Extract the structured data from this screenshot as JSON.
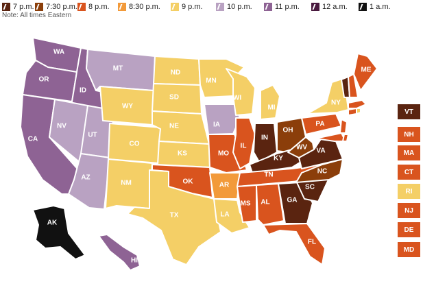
{
  "legend": [
    {
      "label": "7 p.m.",
      "color": "#5a2410"
    },
    {
      "label": "7:30 p.m.",
      "color": "#8b3e0a"
    },
    {
      "label": "8 p.m.",
      "color": "#d9541e"
    },
    {
      "label": "8:30 p.m.",
      "color": "#f29a3a"
    },
    {
      "label": "9 p.m.",
      "color": "#f4cf66"
    },
    {
      "label": "10 p.m.",
      "color": "#b9a2c2"
    },
    {
      "label": "11 p.m.",
      "color": "#8e6394"
    },
    {
      "label": "12 a.m.",
      "color": "#4a1a3f"
    },
    {
      "label": "1 a.m.",
      "color": "#111111"
    }
  ],
  "note": "Note: All times Eastern",
  "states": {
    "WA": "11 p.m.",
    "OR": "11 p.m.",
    "ID": "11 p.m.",
    "CA": "11 p.m.",
    "HI": "11 p.m.",
    "NV": "10 p.m.",
    "UT": "10 p.m.",
    "AZ": "10 p.m.",
    "MT": "10 p.m.",
    "IA": "10 p.m.",
    "AK": "1 a.m.",
    "WY": "9 p.m.",
    "CO": "9 p.m.",
    "NM": "9 p.m.",
    "ND": "9 p.m.",
    "SD": "9 p.m.",
    "NE": "9 p.m.",
    "KS": "9 p.m.",
    "TX": "9 p.m.",
    "MN": "9 p.m.",
    "WI": "9 p.m.",
    "MI": "9 p.m.",
    "LA": "9 p.m.",
    "NY": "9 p.m.",
    "RI": "9 p.m.",
    "AR": "8:30 p.m.",
    "OK": "8 p.m.",
    "MO": "8 p.m.",
    "IL": "8 p.m.",
    "MS": "8 p.m.",
    "AL": "8 p.m.",
    "TN": "8 p.m.",
    "FL": "8 p.m.",
    "PA": "8 p.m.",
    "ME": "8 p.m.",
    "NH": "8 p.m.",
    "MA": "8 p.m.",
    "CT": "8 p.m.",
    "NJ": "8 p.m.",
    "DE": "8 p.m.",
    "MD": "8 p.m.",
    "NC": "7:30 p.m.",
    "OH": "7:30 p.m.",
    "WV": "7:30 p.m.",
    "IN": "7 p.m.",
    "KY": "7 p.m.",
    "GA": "7 p.m.",
    "SC": "7 p.m.",
    "VA": "7 p.m.",
    "VT": "7 p.m."
  },
  "colors": {
    "7 p.m.": "#5a2410",
    "7:30 p.m.": "#8b3e0a",
    "8 p.m.": "#d9541e",
    "8:30 p.m.": "#f29a3a",
    "9 p.m.": "#f4cf66",
    "10 p.m.": "#b9a2c2",
    "11 p.m.": "#8e6394",
    "12 a.m.": "#4a1a3f",
    "1 a.m.": "#111111"
  },
  "ne_boxes": [
    "VT",
    "NH",
    "MA",
    "CT",
    "RI",
    "NJ",
    "DE",
    "MD"
  ]
}
